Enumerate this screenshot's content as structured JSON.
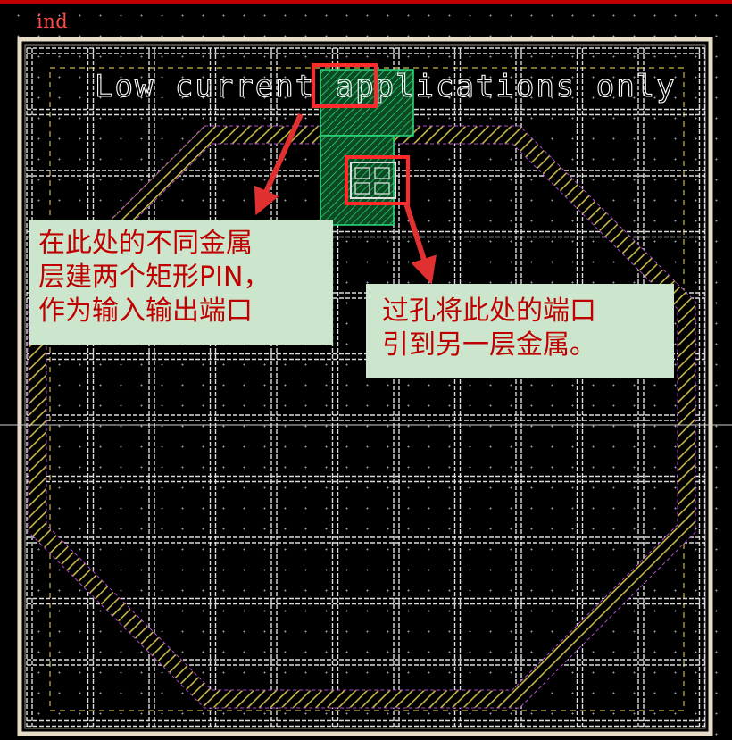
{
  "layout": {
    "cell_name": "ind",
    "text_label": "Low current applications only",
    "colors": {
      "background": "#000000",
      "grid_lines": "#dcdcdc",
      "boundary": "#e6dcc8",
      "inductor_hatch": "#c8b84a",
      "inductor_outline": "#b04ad0",
      "pin_region": "#22d27a",
      "highlight_box": "#ff2a2a",
      "arrow": "#e03030",
      "top_bar": "#c00000"
    }
  },
  "callouts": {
    "pins": {
      "lines": [
        "在此处的不同金属",
        "层建两个矩形PIN，",
        "作为输入输出端口"
      ],
      "background": "#cbe6cc",
      "text_color": "#c00000"
    },
    "via": {
      "lines": [
        "过孔将此处的端口",
        "引到另一层金属。"
      ],
      "background": "#cbe6cc",
      "text_color": "#c00000"
    }
  },
  "annotations": {
    "icons": [
      "arrow-down-left-icon",
      "arrow-down-icon"
    ],
    "highlights": [
      "pin-highlight-box",
      "via-highlight-box"
    ]
  }
}
